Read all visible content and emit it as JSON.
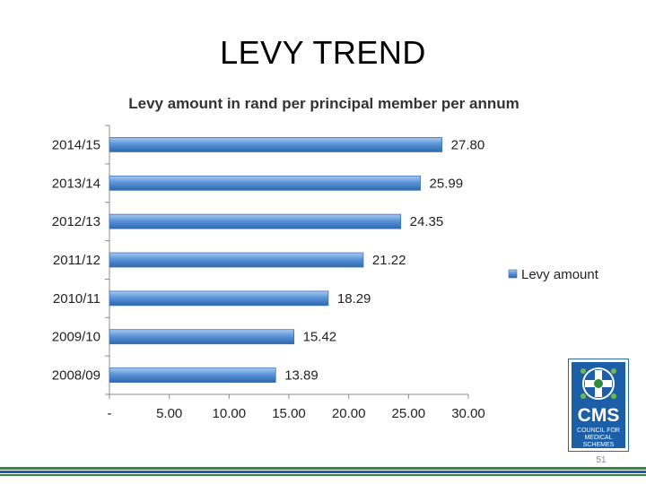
{
  "slide": {
    "title": "LEVY TREND",
    "page_number": "51"
  },
  "logo": {
    "text": "CMS",
    "subtext": "COUNCIL FOR MEDICAL SCHEMES"
  },
  "colors": {
    "bar_fill": "#5b95d8",
    "bar_stroke": "#3b73b9",
    "footer_green": "#2e8b3e",
    "footer_blue": "#1d5fa6"
  },
  "chart_data": {
    "type": "bar",
    "orientation": "horizontal",
    "title": "Levy amount in rand per principal member per annum",
    "categories": [
      "2014/15",
      "2013/14",
      "2012/13",
      "2011/12",
      "2010/11",
      "2009/10",
      "2008/09"
    ],
    "series": [
      {
        "name": "Levy amount",
        "values": [
          27.8,
          25.99,
          24.35,
          21.22,
          18.29,
          15.42,
          13.89
        ],
        "labels": [
          "27.80",
          "25.99",
          "24.35",
          "21.22",
          "18.29",
          "15.42",
          "13.89"
        ]
      }
    ],
    "xlim": [
      0,
      30
    ],
    "xticks": [
      0,
      5,
      10,
      15,
      20,
      25,
      30
    ],
    "xtick_labels": [
      "-",
      "5.00",
      "10.00",
      "15.00",
      "20.00",
      "25.00",
      "30.00"
    ],
    "grid": false,
    "legend_position": "right"
  }
}
